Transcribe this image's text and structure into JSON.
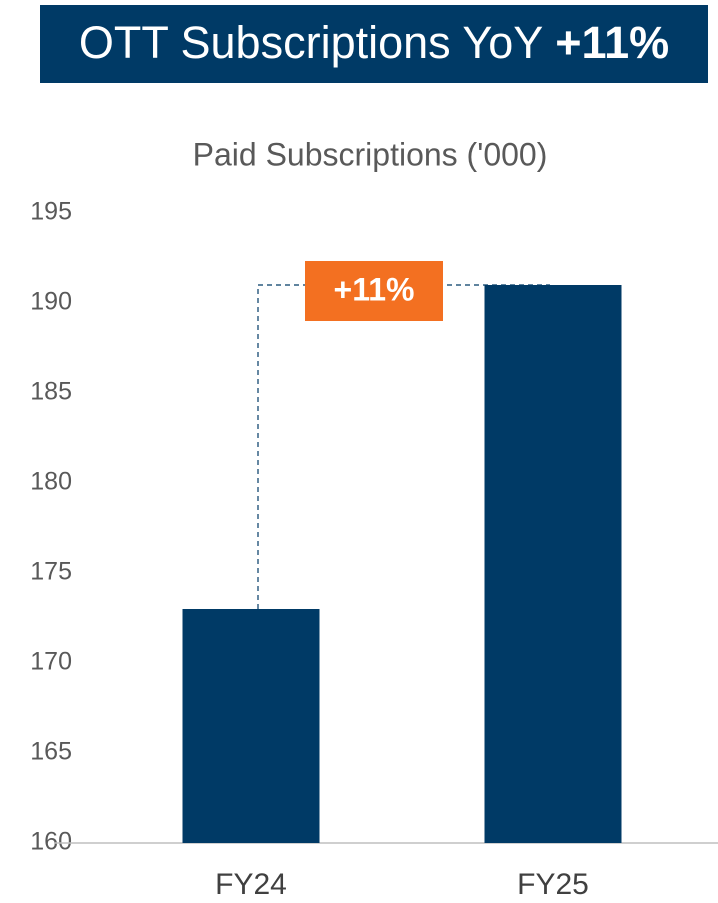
{
  "header": {
    "title": "OTT Subscriptions YoY",
    "highlight": "+11%"
  },
  "chart_data": {
    "type": "bar",
    "title": "Paid Subscriptions ('000)",
    "categories": [
      "FY24",
      "FY25"
    ],
    "values": [
      173,
      191
    ],
    "color": "#003a66",
    "ylim": [
      160,
      195
    ],
    "yticks": [
      160,
      165,
      170,
      175,
      180,
      185,
      190,
      195
    ],
    "annotation": {
      "label": "+11%",
      "color": "#f37021"
    }
  }
}
